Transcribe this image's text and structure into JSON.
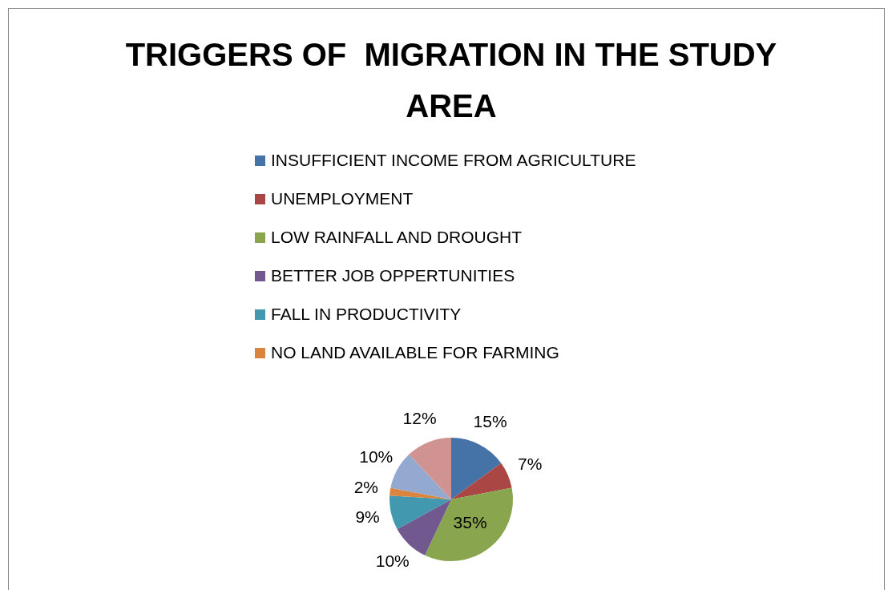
{
  "chart_data": {
    "type": "pie",
    "title": "TRIGGERS OF  MIGRATION IN THE STUDY AREA",
    "categories": [
      "INSUFFICIENT INCOME FROM AGRICULTURE",
      "UNEMPLOYMENT",
      "LOW RAINFALL AND DROUGHT",
      "BETTER JOB OPPERTUNITIES",
      "FALL IN PRODUCTIVITY",
      "NO LAND AVAILABLE FOR FARMING",
      null,
      null
    ],
    "values": [
      15,
      7,
      35,
      10,
      9,
      2,
      10,
      12
    ],
    "colors": [
      "#4572a7",
      "#aa4643",
      "#89a54e",
      "#71588f",
      "#4198af",
      "#db843d",
      "#93a9cf",
      "#d19392"
    ],
    "value_labels": [
      "15%",
      "7%",
      "35%",
      "10%",
      "9%",
      "2%",
      "10%",
      "12%"
    ],
    "legend": "top"
  }
}
